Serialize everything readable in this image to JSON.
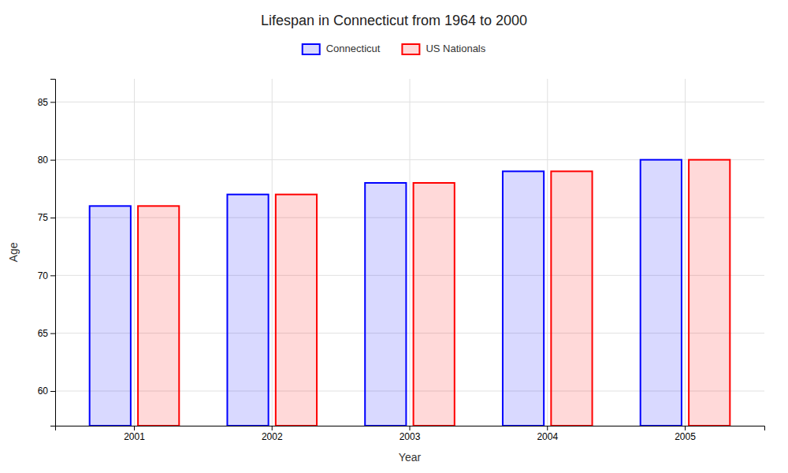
{
  "chart_data": {
    "type": "bar",
    "title": "Lifespan in Connecticut from 1964 to 2000",
    "xlabel": "Year",
    "ylabel": "Age",
    "categories": [
      "2001",
      "2002",
      "2003",
      "2004",
      "2005"
    ],
    "series": [
      {
        "name": "Connecticut",
        "color": "#0000ff",
        "values": [
          76,
          77,
          78,
          79,
          80
        ]
      },
      {
        "name": "US Nationals",
        "color": "#ff0000",
        "values": [
          76,
          77,
          78,
          79,
          80
        ]
      }
    ],
    "ylim": [
      57,
      87
    ],
    "yticks": [
      60,
      65,
      70,
      75,
      80,
      85
    ],
    "grid": true,
    "legend": "top"
  }
}
